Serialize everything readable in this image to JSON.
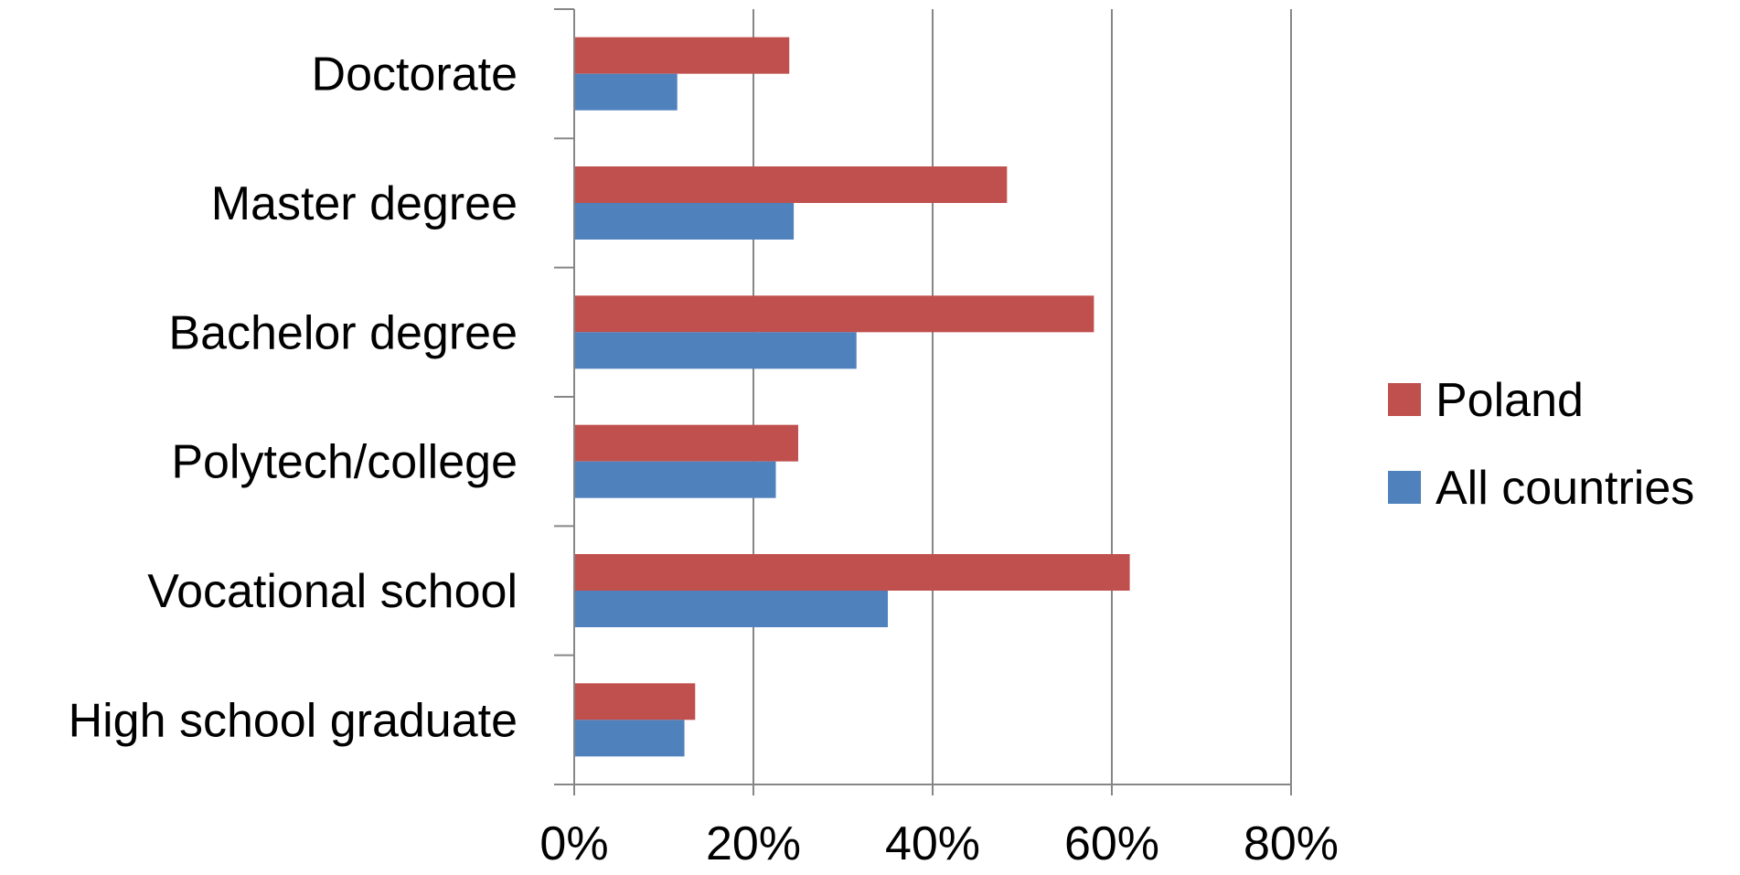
{
  "chart_data": {
    "type": "bar",
    "orientation": "horizontal",
    "categories": [
      "Doctorate",
      "Master degree",
      "Bachelor degree",
      "Polytech/college",
      "Vocational school",
      "High school graduate"
    ],
    "series": [
      {
        "name": "Poland",
        "color": "#C0504D",
        "values": [
          24,
          48.3,
          58,
          25,
          62,
          13.5
        ]
      },
      {
        "name": "All countries",
        "color": "#4F81BD",
        "values": [
          11.5,
          24.5,
          31.5,
          22.5,
          35,
          12.3
        ]
      }
    ],
    "xlim": [
      0,
      80
    ],
    "xticks": [
      0,
      20,
      40,
      60,
      80
    ],
    "tick_labels": [
      "0%",
      "20%",
      "40%",
      "60%",
      "80%"
    ],
    "grid": "vertical",
    "legend": "right",
    "axis_color": "#868686"
  }
}
